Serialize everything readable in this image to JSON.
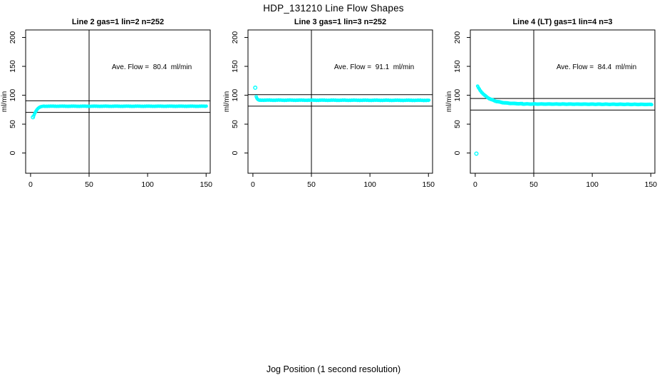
{
  "title": "HDP_131210  Line Flow Shapes",
  "xlabel": "Jog Position (1 second resolution)",
  "colors": {
    "marker": "#00FFFF",
    "axis": "#000000",
    "text": "#000000",
    "background": "#FFFFFF"
  },
  "axes": {
    "xlim": [
      -4.2,
      153.5
    ],
    "ylim": [
      -35,
      213
    ],
    "xticks": [
      0,
      50,
      100,
      150
    ],
    "yticks": [
      0,
      50,
      100,
      150,
      200
    ],
    "ylabel": "ml/min"
  },
  "chart_data": [
    {
      "type": "scatter",
      "title": "Line 2 gas=1 lin=2 n=252",
      "n": 252,
      "ave_flow": 80.4,
      "annotation": "Ave. Flow =  80.4  ml/min",
      "vline_x": 50,
      "hlines": [
        90.4,
        70.4
      ],
      "outliers": [
        [
          2,
          62
        ]
      ],
      "head_points": [
        [
          2.6,
          63.8
        ],
        [
          3.0,
          65.9
        ],
        [
          3.4,
          67.8
        ],
        [
          3.8,
          69.5
        ],
        [
          4.2,
          71.1
        ],
        [
          4.6,
          72.5
        ],
        [
          5.0,
          73.8
        ],
        [
          5.4,
          74.9
        ],
        [
          5.8,
          75.9
        ],
        [
          6.2,
          76.8
        ],
        [
          6.6,
          77.6
        ],
        [
          7.0,
          78.2
        ],
        [
          7.4,
          78.8
        ],
        [
          7.8,
          79.3
        ],
        [
          8.2,
          79.7
        ],
        [
          8.6,
          80.0
        ],
        [
          9.0,
          80.3
        ],
        [
          9.4,
          80.5
        ],
        [
          10.0,
          80.8
        ]
      ],
      "plateau": {
        "x_start": 10.4,
        "x_end": 150.6,
        "step": 0.6,
        "y_start": 81.0,
        "y_end": 81.0,
        "jitter": 0.45
      }
    },
    {
      "type": "scatter",
      "title": "Line 3 gas=1 lin=3 n=252",
      "n": 252,
      "ave_flow": 91.1,
      "annotation": "Ave. Flow =  91.1  ml/min",
      "vline_x": 50,
      "hlines": [
        101.1,
        81.1
      ],
      "outliers": [
        [
          2,
          113
        ]
      ],
      "head_points": [
        [
          2.8,
          97.8
        ],
        [
          3.2,
          95.6
        ],
        [
          3.6,
          94.1
        ],
        [
          4.0,
          93.1
        ],
        [
          4.4,
          92.4
        ],
        [
          4.8,
          91.9
        ],
        [
          5.2,
          91.6
        ],
        [
          5.6,
          91.4
        ],
        [
          6.0,
          91.3
        ]
      ],
      "plateau": {
        "x_start": 6.4,
        "x_end": 150.6,
        "step": 0.6,
        "y_start": 91.5,
        "y_end": 91.2,
        "jitter": 0.55
      }
    },
    {
      "type": "scatter",
      "title": "Line 4 (LT) gas=1 lin=4 n=3",
      "n": 3,
      "ave_flow": 84.4,
      "annotation": "Ave. Flow =  84.4  ml/min",
      "vline_x": 50,
      "hlines": [
        94.4,
        74.4
      ],
      "outliers": [
        [
          1,
          -1
        ]
      ],
      "head_points": [],
      "decay": {
        "x_start": 2,
        "x_end": 40,
        "step": 0.4,
        "base": 84.9,
        "amp": 30.6,
        "tau": 8.5,
        "jitter": 0.7
      },
      "plateau": {
        "x_start": 40.4,
        "x_end": 151,
        "step": 0.4,
        "y_start": 84.9,
        "y_end": 84.1,
        "jitter": 0.55
      }
    }
  ]
}
